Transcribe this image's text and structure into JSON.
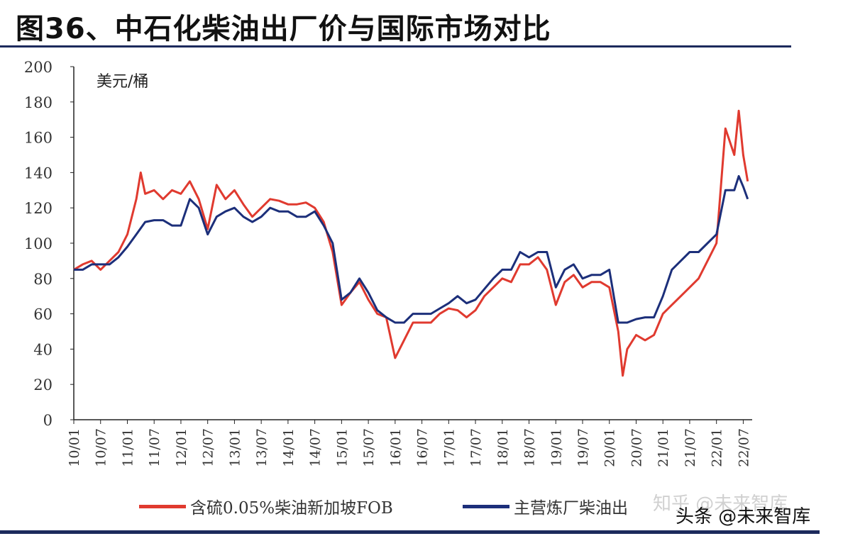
{
  "title": "图36、中石化柴油出厂价与国际市场对比",
  "watermarks": [
    "知乎 @未来智库",
    "头条 @未来智库"
  ],
  "chart_data": {
    "type": "line",
    "title": "图36、中石化柴油出厂价与国际市场对比",
    "ylabel": "美元/桶",
    "ylim": [
      0,
      200
    ],
    "yticks": [
      0,
      20,
      40,
      60,
      80,
      100,
      120,
      140,
      160,
      180,
      200
    ],
    "xticks": [
      "10/01",
      "10/07",
      "11/01",
      "11/07",
      "12/01",
      "12/07",
      "13/01",
      "13/07",
      "14/01",
      "14/07",
      "15/01",
      "15/07",
      "16/01",
      "16/07",
      "17/01",
      "17/07",
      "18/01",
      "18/07",
      "19/01",
      "19/07",
      "20/01",
      "20/07",
      "21/01",
      "21/07",
      "22/01",
      "22/07"
    ],
    "xlim": [
      "2010-01",
      "2022-09"
    ],
    "grid": false,
    "legend": "bottom",
    "series": [
      {
        "name": "含硫0.05%柴油新加坡FOB",
        "color": "#e03a2f",
        "points": [
          [
            "2010-01",
            85
          ],
          [
            "2010-03",
            88
          ],
          [
            "2010-05",
            90
          ],
          [
            "2010-07",
            85
          ],
          [
            "2010-09",
            90
          ],
          [
            "2010-11",
            95
          ],
          [
            "2011-01",
            105
          ],
          [
            "2011-03",
            125
          ],
          [
            "2011-04",
            140
          ],
          [
            "2011-05",
            128
          ],
          [
            "2011-07",
            130
          ],
          [
            "2011-09",
            125
          ],
          [
            "2011-11",
            130
          ],
          [
            "2012-01",
            128
          ],
          [
            "2012-03",
            135
          ],
          [
            "2012-05",
            125
          ],
          [
            "2012-07",
            108
          ],
          [
            "2012-09",
            133
          ],
          [
            "2012-11",
            125
          ],
          [
            "2013-01",
            130
          ],
          [
            "2013-03",
            122
          ],
          [
            "2013-05",
            115
          ],
          [
            "2013-07",
            120
          ],
          [
            "2013-09",
            125
          ],
          [
            "2013-11",
            124
          ],
          [
            "2014-01",
            122
          ],
          [
            "2014-03",
            122
          ],
          [
            "2014-05",
            123
          ],
          [
            "2014-07",
            120
          ],
          [
            "2014-09",
            112
          ],
          [
            "2014-11",
            95
          ],
          [
            "2015-01",
            65
          ],
          [
            "2015-03",
            72
          ],
          [
            "2015-05",
            78
          ],
          [
            "2015-07",
            68
          ],
          [
            "2015-09",
            60
          ],
          [
            "2015-11",
            58
          ],
          [
            "2016-01",
            35
          ],
          [
            "2016-03",
            45
          ],
          [
            "2016-05",
            55
          ],
          [
            "2016-07",
            55
          ],
          [
            "2016-09",
            55
          ],
          [
            "2016-11",
            60
          ],
          [
            "2017-01",
            63
          ],
          [
            "2017-03",
            62
          ],
          [
            "2017-05",
            58
          ],
          [
            "2017-07",
            62
          ],
          [
            "2017-09",
            70
          ],
          [
            "2017-11",
            75
          ],
          [
            "2018-01",
            80
          ],
          [
            "2018-03",
            78
          ],
          [
            "2018-05",
            88
          ],
          [
            "2018-07",
            88
          ],
          [
            "2018-09",
            92
          ],
          [
            "2018-11",
            85
          ],
          [
            "2019-01",
            65
          ],
          [
            "2019-03",
            78
          ],
          [
            "2019-05",
            82
          ],
          [
            "2019-07",
            75
          ],
          [
            "2019-09",
            78
          ],
          [
            "2019-11",
            78
          ],
          [
            "2020-01",
            75
          ],
          [
            "2020-03",
            50
          ],
          [
            "2020-04",
            25
          ],
          [
            "2020-05",
            40
          ],
          [
            "2020-07",
            48
          ],
          [
            "2020-09",
            45
          ],
          [
            "2020-11",
            48
          ],
          [
            "2021-01",
            60
          ],
          [
            "2021-03",
            65
          ],
          [
            "2021-05",
            70
          ],
          [
            "2021-07",
            75
          ],
          [
            "2021-09",
            80
          ],
          [
            "2021-11",
            90
          ],
          [
            "2022-01",
            100
          ],
          [
            "2022-03",
            165
          ],
          [
            "2022-05",
            150
          ],
          [
            "2022-06",
            175
          ],
          [
            "2022-07",
            150
          ],
          [
            "2022-08",
            135
          ]
        ]
      },
      {
        "name": "主营炼厂柴油出",
        "color": "#1c2f7a",
        "points": [
          [
            "2010-01",
            85
          ],
          [
            "2010-03",
            85
          ],
          [
            "2010-05",
            88
          ],
          [
            "2010-07",
            88
          ],
          [
            "2010-09",
            88
          ],
          [
            "2010-11",
            92
          ],
          [
            "2011-01",
            98
          ],
          [
            "2011-03",
            105
          ],
          [
            "2011-05",
            112
          ],
          [
            "2011-07",
            113
          ],
          [
            "2011-09",
            113
          ],
          [
            "2011-11",
            110
          ],
          [
            "2012-01",
            110
          ],
          [
            "2012-03",
            125
          ],
          [
            "2012-05",
            120
          ],
          [
            "2012-07",
            105
          ],
          [
            "2012-09",
            115
          ],
          [
            "2012-11",
            118
          ],
          [
            "2013-01",
            120
          ],
          [
            "2013-03",
            115
          ],
          [
            "2013-05",
            112
          ],
          [
            "2013-07",
            115
          ],
          [
            "2013-09",
            120
          ],
          [
            "2013-11",
            118
          ],
          [
            "2014-01",
            118
          ],
          [
            "2014-03",
            115
          ],
          [
            "2014-05",
            115
          ],
          [
            "2014-07",
            118
          ],
          [
            "2014-09",
            110
          ],
          [
            "2014-11",
            100
          ],
          [
            "2015-01",
            68
          ],
          [
            "2015-03",
            72
          ],
          [
            "2015-05",
            80
          ],
          [
            "2015-07",
            72
          ],
          [
            "2015-09",
            62
          ],
          [
            "2015-11",
            58
          ],
          [
            "2016-01",
            55
          ],
          [
            "2016-03",
            55
          ],
          [
            "2016-05",
            60
          ],
          [
            "2016-07",
            60
          ],
          [
            "2016-09",
            60
          ],
          [
            "2016-11",
            63
          ],
          [
            "2017-01",
            66
          ],
          [
            "2017-03",
            70
          ],
          [
            "2017-05",
            66
          ],
          [
            "2017-07",
            68
          ],
          [
            "2017-09",
            74
          ],
          [
            "2017-11",
            80
          ],
          [
            "2018-01",
            85
          ],
          [
            "2018-03",
            85
          ],
          [
            "2018-05",
            95
          ],
          [
            "2018-07",
            92
          ],
          [
            "2018-09",
            95
          ],
          [
            "2018-11",
            95
          ],
          [
            "2019-01",
            75
          ],
          [
            "2019-03",
            85
          ],
          [
            "2019-05",
            88
          ],
          [
            "2019-07",
            80
          ],
          [
            "2019-09",
            82
          ],
          [
            "2019-11",
            82
          ],
          [
            "2020-01",
            85
          ],
          [
            "2020-03",
            55
          ],
          [
            "2020-05",
            55
          ],
          [
            "2020-07",
            57
          ],
          [
            "2020-09",
            58
          ],
          [
            "2020-11",
            58
          ],
          [
            "2021-01",
            70
          ],
          [
            "2021-03",
            85
          ],
          [
            "2021-05",
            90
          ],
          [
            "2021-07",
            95
          ],
          [
            "2021-09",
            95
          ],
          [
            "2021-11",
            100
          ],
          [
            "2022-01",
            105
          ],
          [
            "2022-03",
            130
          ],
          [
            "2022-05",
            130
          ],
          [
            "2022-06",
            138
          ],
          [
            "2022-07",
            132
          ],
          [
            "2022-08",
            125
          ]
        ]
      }
    ]
  }
}
